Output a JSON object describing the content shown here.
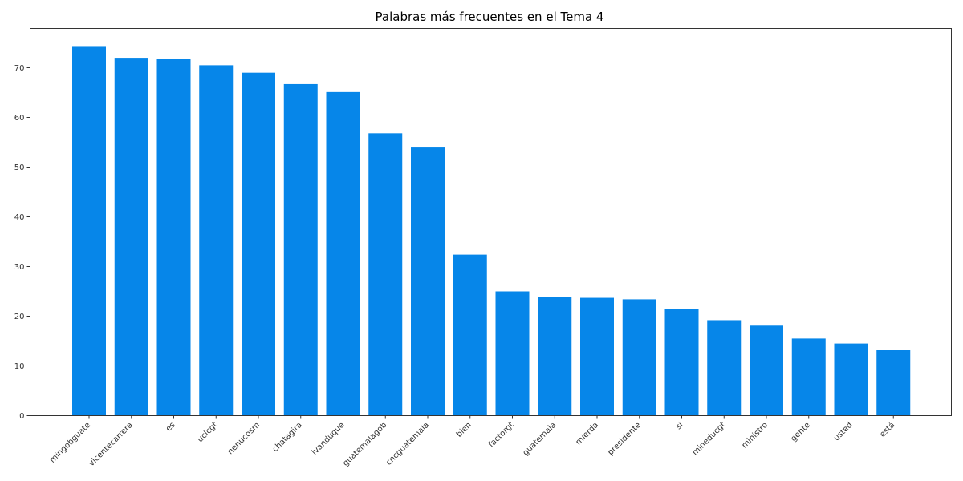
{
  "chart_data": {
    "type": "bar",
    "title": "Palabras más frecuentes en el Tema 4",
    "xlabel": "",
    "ylabel": "",
    "categories": [
      "mingobguate",
      "vicentecarrera",
      "es",
      "uclcgt",
      "nenucosm",
      "chatagira",
      "ivanduque",
      "guatemalagob",
      "cncguatemala",
      "bien",
      "factorgt",
      "guatemala",
      "mierda",
      "presidente",
      "si",
      "mineducgt",
      "ministro",
      "gente",
      "usted",
      "está"
    ],
    "values": [
      74.2,
      72.0,
      71.8,
      70.5,
      69.0,
      66.7,
      65.1,
      56.8,
      54.1,
      32.4,
      25.0,
      23.9,
      23.7,
      23.4,
      21.5,
      19.2,
      18.1,
      15.5,
      14.5,
      13.3
    ],
    "ylim": [
      0,
      77.9
    ],
    "yticks": [
      0,
      10,
      20,
      30,
      40,
      50,
      60,
      70
    ],
    "grid": false,
    "bar_color": "#0686e9"
  }
}
